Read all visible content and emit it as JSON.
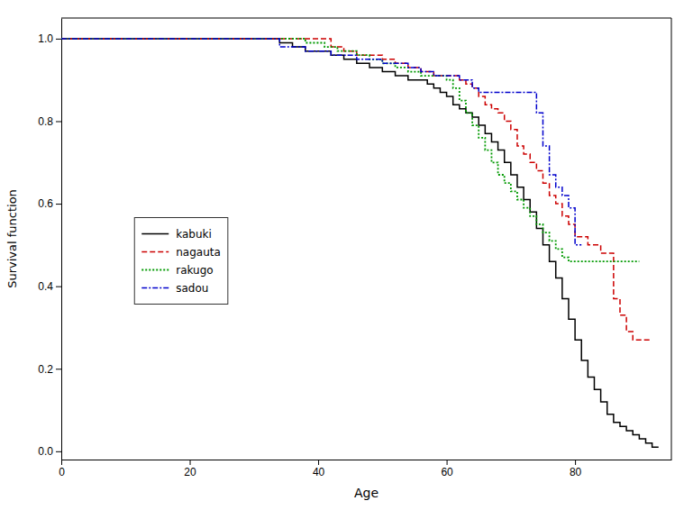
{
  "chart_data": {
    "type": "step",
    "xlabel": "Age",
    "ylabel": "Survival function",
    "xlim": [
      0,
      95
    ],
    "ylim": [
      -0.02,
      1.05
    ],
    "xticks": [
      0,
      20,
      40,
      60,
      80
    ],
    "yticks": [
      {
        "value": 0.0,
        "label": "0.0"
      },
      0.2,
      0.4,
      0.6,
      0.8,
      {
        "value": 1.0,
        "label": "1.0"
      }
    ],
    "grid": false,
    "legend": "left",
    "series": [
      {
        "name": "kabuki",
        "color": "#000000",
        "line_style": "solid",
        "x": [
          0,
          32,
          34,
          36,
          38,
          40,
          42,
          44,
          46,
          48,
          50,
          52,
          54,
          56,
          57,
          58,
          59,
          60,
          61,
          62,
          63,
          64,
          65,
          66,
          67,
          68,
          69,
          70,
          71,
          72,
          73,
          74,
          75,
          76,
          77,
          78,
          79,
          80,
          81,
          82,
          83,
          84,
          85,
          86,
          87,
          88,
          89,
          90,
          91,
          92,
          93
        ],
        "values": [
          1.0,
          1.0,
          0.99,
          0.98,
          0.97,
          0.97,
          0.96,
          0.95,
          0.94,
          0.93,
          0.92,
          0.91,
          0.9,
          0.9,
          0.89,
          0.88,
          0.87,
          0.86,
          0.84,
          0.83,
          0.82,
          0.81,
          0.79,
          0.77,
          0.75,
          0.73,
          0.7,
          0.67,
          0.64,
          0.61,
          0.58,
          0.54,
          0.5,
          0.46,
          0.42,
          0.37,
          0.32,
          0.27,
          0.22,
          0.18,
          0.15,
          0.12,
          0.09,
          0.07,
          0.06,
          0.05,
          0.04,
          0.03,
          0.02,
          0.01,
          0.01
        ]
      },
      {
        "name": "nagauta",
        "color": "#cc0000",
        "line_style": "dashed",
        "x": [
          0,
          38,
          42,
          44,
          46,
          48,
          50,
          52,
          54,
          56,
          58,
          60,
          62,
          63,
          64,
          65,
          66,
          67,
          68,
          69,
          70,
          71,
          72,
          73,
          74,
          75,
          76,
          77,
          78,
          79,
          80,
          82,
          84,
          86,
          87,
          88,
          89,
          90,
          91,
          92
        ],
        "values": [
          1.0,
          1.0,
          0.98,
          0.97,
          0.96,
          0.96,
          0.95,
          0.94,
          0.93,
          0.92,
          0.91,
          0.91,
          0.9,
          0.89,
          0.88,
          0.86,
          0.84,
          0.83,
          0.82,
          0.8,
          0.78,
          0.74,
          0.72,
          0.7,
          0.68,
          0.65,
          0.62,
          0.6,
          0.57,
          0.55,
          0.52,
          0.5,
          0.48,
          0.37,
          0.33,
          0.29,
          0.27,
          0.27,
          0.27,
          0.27
        ]
      },
      {
        "name": "rakugo",
        "color": "#009900",
        "line_style": "dotted",
        "x": [
          0,
          35,
          38,
          41,
          43,
          46,
          48,
          50,
          52,
          54,
          56,
          58,
          60,
          61,
          62,
          63,
          64,
          65,
          66,
          67,
          68,
          69,
          70,
          71,
          72,
          73,
          74,
          75,
          76,
          77,
          78,
          79,
          80,
          81,
          82,
          83,
          84,
          85,
          86,
          87,
          88,
          89,
          90
        ],
        "values": [
          1.0,
          1.0,
          0.99,
          0.98,
          0.97,
          0.96,
          0.95,
          0.94,
          0.93,
          0.92,
          0.91,
          0.91,
          0.9,
          0.88,
          0.85,
          0.82,
          0.79,
          0.76,
          0.73,
          0.7,
          0.67,
          0.65,
          0.63,
          0.61,
          0.59,
          0.57,
          0.55,
          0.53,
          0.51,
          0.49,
          0.47,
          0.46,
          0.46,
          0.46,
          0.46,
          0.46,
          0.46,
          0.46,
          0.46,
          0.46,
          0.46,
          0.46,
          0.46
        ]
      },
      {
        "name": "sadou",
        "color": "#0000cc",
        "line_style": "dashdot",
        "x": [
          0,
          30,
          34,
          38,
          42,
          46,
          50,
          54,
          56,
          58,
          60,
          62,
          64,
          65,
          66,
          67,
          68,
          69,
          70,
          71,
          72,
          73,
          74,
          75,
          76,
          77,
          78,
          79,
          80,
          81
        ],
        "values": [
          1.0,
          1.0,
          0.98,
          0.97,
          0.96,
          0.95,
          0.94,
          0.93,
          0.92,
          0.91,
          0.91,
          0.9,
          0.88,
          0.87,
          0.87,
          0.87,
          0.87,
          0.87,
          0.87,
          0.87,
          0.87,
          0.87,
          0.82,
          0.74,
          0.67,
          0.64,
          0.62,
          0.59,
          0.5,
          0.5
        ]
      }
    ]
  }
}
